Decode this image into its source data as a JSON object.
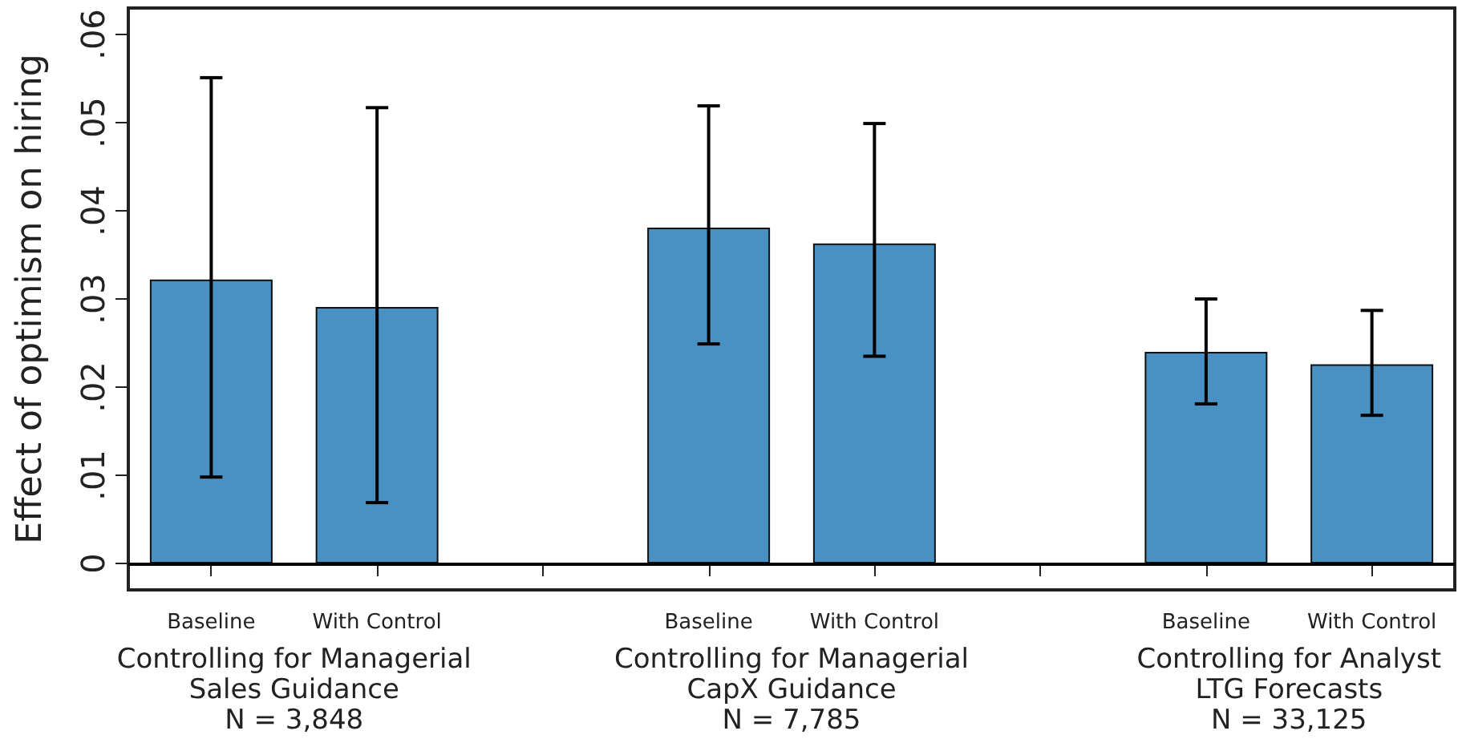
{
  "chart_data": {
    "type": "bar",
    "ylabel": "Effect of optimism on hiring",
    "categories": [
      "Baseline",
      "With Control",
      null,
      "Baseline",
      "With Control",
      null,
      "Baseline",
      "With Control"
    ],
    "values": [
      0.0322,
      0.0291,
      null,
      0.0381,
      0.0363,
      null,
      0.024,
      0.0226
    ],
    "errors": [
      [
        0.0098,
        0.0551
      ],
      [
        0.0069,
        0.0517
      ],
      null,
      [
        0.0249,
        0.0519
      ],
      [
        0.0235,
        0.0499
      ],
      null,
      [
        0.0181,
        0.03
      ],
      [
        0.0168,
        0.0287
      ]
    ],
    "color": "#4a91c3",
    "ylim": [
      -0.003,
      0.063
    ],
    "yticks": [
      0,
      {
        "value": 0.01,
        "label": ".01"
      },
      {
        "value": 0.02,
        "label": ".02"
      },
      {
        "value": 0.03,
        "label": ".03"
      },
      {
        "value": 0.04,
        "label": ".04"
      },
      {
        "value": 0.05,
        "label": ".05"
      },
      {
        "value": 0.06,
        "label": ".06"
      }
    ],
    "ref_lines": [
      {
        "axis": "y",
        "value": 0,
        "color": "#000000"
      }
    ],
    "annotations": [
      "Controlling for Managerial\nSales Guidance\nN = 3,848",
      "Controlling for Managerial\nCapX Guidance\nN = 7,785",
      "Controlling for Analyst\nLTG Forecasts\nN = 33,125"
    ]
  }
}
